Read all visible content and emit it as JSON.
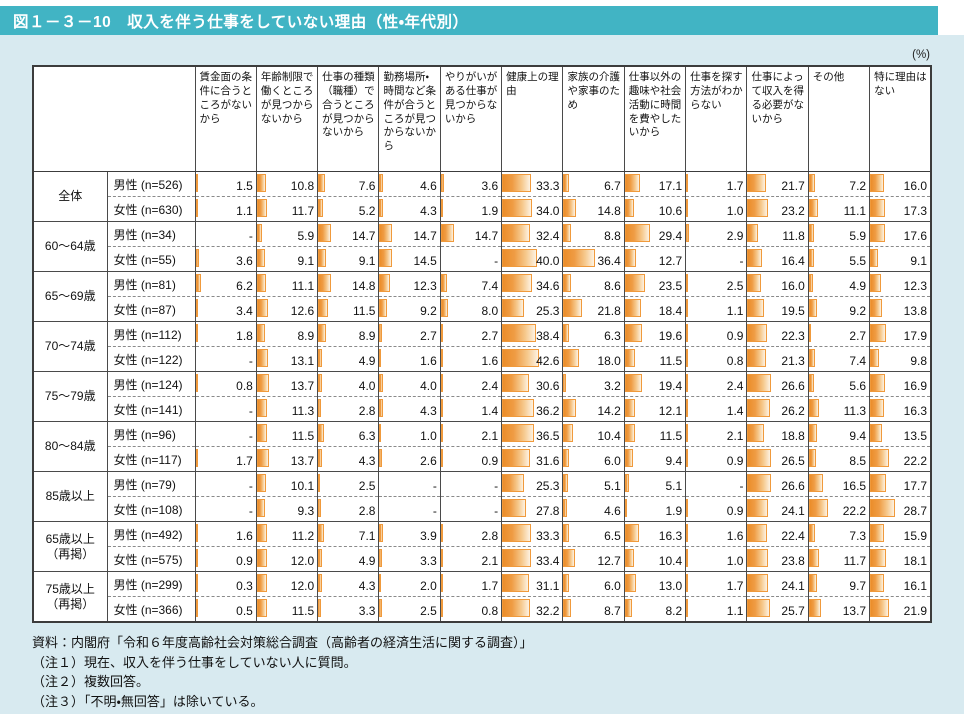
{
  "page": {
    "title": "図１－３－10　収入を伴う仕事をしていない理由（性・年代別）",
    "unit_label": "(%)"
  },
  "colors": {
    "title_bar": "#41b4c4",
    "panel_background": "#d8eaf0",
    "bar_border": "#f09a3c",
    "bar_fill_dark": "#eb8d2a",
    "bar_fill_light": "#fdf2e2"
  },
  "chart_data": {
    "type": "table",
    "title": "収入を伴う仕事をしていない理由（性・年代別）",
    "unit": "%",
    "columns": [
      "賃金面の条件に合うところがないから",
      "年齢制限で働くところが見つからないから",
      "仕事の種類（職種）で合うところが見つからないから",
      "勤務場所・時間など条件が合うところが見つからないから",
      "やりがいがある仕事が見つからないから",
      "健康上の理由",
      "家族の介護や家事のため",
      "仕事以外の趣味や社会活動に時間を費やしたいから",
      "仕事を探す方法がわからない",
      "仕事によって収入を得る必要がないから",
      "その他",
      "特に理由はない"
    ],
    "groups": [
      {
        "label": "全体",
        "rows": [
          {
            "label": "男性 (n=526)",
            "values": [
              "1.5",
              "10.8",
              "7.6",
              "4.6",
              "3.6",
              "33.3",
              "6.7",
              "17.1",
              "1.7",
              "21.7",
              "7.2",
              "16.0"
            ]
          },
          {
            "label": "女性 (n=630)",
            "values": [
              "1.1",
              "11.7",
              "5.2",
              "4.3",
              "1.9",
              "34.0",
              "14.8",
              "10.6",
              "1.0",
              "23.2",
              "11.1",
              "17.3"
            ]
          }
        ]
      },
      {
        "label": "60～64歳",
        "rows": [
          {
            "label": "男性 (n=34)",
            "values": [
              "-",
              "5.9",
              "14.7",
              "14.7",
              "14.7",
              "32.4",
              "8.8",
              "29.4",
              "2.9",
              "11.8",
              "5.9",
              "17.6"
            ]
          },
          {
            "label": "女性 (n=55)",
            "values": [
              "3.6",
              "9.1",
              "9.1",
              "14.5",
              "-",
              "40.0",
              "36.4",
              "12.7",
              "-",
              "16.4",
              "5.5",
              "9.1"
            ]
          }
        ]
      },
      {
        "label": "65～69歳",
        "rows": [
          {
            "label": "男性 (n=81)",
            "values": [
              "6.2",
              "11.1",
              "14.8",
              "12.3",
              "7.4",
              "34.6",
              "8.6",
              "23.5",
              "2.5",
              "16.0",
              "4.9",
              "12.3"
            ]
          },
          {
            "label": "女性 (n=87)",
            "values": [
              "3.4",
              "12.6",
              "11.5",
              "9.2",
              "8.0",
              "25.3",
              "21.8",
              "18.4",
              "1.1",
              "19.5",
              "9.2",
              "13.8"
            ]
          }
        ]
      },
      {
        "label": "70～74歳",
        "rows": [
          {
            "label": "男性 (n=112)",
            "values": [
              "1.8",
              "8.9",
              "8.9",
              "2.7",
              "2.7",
              "38.4",
              "6.3",
              "19.6",
              "0.9",
              "22.3",
              "2.7",
              "17.9"
            ]
          },
          {
            "label": "女性 (n=122)",
            "values": [
              "-",
              "13.1",
              "4.9",
              "1.6",
              "1.6",
              "42.6",
              "18.0",
              "11.5",
              "0.8",
              "21.3",
              "7.4",
              "9.8"
            ]
          }
        ]
      },
      {
        "label": "75～79歳",
        "rows": [
          {
            "label": "男性 (n=124)",
            "values": [
              "0.8",
              "13.7",
              "4.0",
              "4.0",
              "2.4",
              "30.6",
              "3.2",
              "19.4",
              "2.4",
              "26.6",
              "5.6",
              "16.9"
            ]
          },
          {
            "label": "女性 (n=141)",
            "values": [
              "-",
              "11.3",
              "2.8",
              "4.3",
              "1.4",
              "36.2",
              "14.2",
              "12.1",
              "1.4",
              "26.2",
              "11.3",
              "16.3"
            ]
          }
        ]
      },
      {
        "label": "80～84歳",
        "rows": [
          {
            "label": "男性 (n=96)",
            "values": [
              "-",
              "11.5",
              "6.3",
              "1.0",
              "2.1",
              "36.5",
              "10.4",
              "11.5",
              "2.1",
              "18.8",
              "9.4",
              "13.5"
            ]
          },
          {
            "label": "女性 (n=117)",
            "values": [
              "1.7",
              "13.7",
              "4.3",
              "2.6",
              "0.9",
              "31.6",
              "6.0",
              "9.4",
              "0.9",
              "26.5",
              "8.5",
              "22.2"
            ]
          }
        ]
      },
      {
        "label": "85歳以上",
        "rows": [
          {
            "label": "男性 (n=79)",
            "values": [
              "-",
              "10.1",
              "2.5",
              "-",
              "-",
              "25.3",
              "5.1",
              "5.1",
              "-",
              "26.6",
              "16.5",
              "17.7"
            ]
          },
          {
            "label": "女性 (n=108)",
            "values": [
              "-",
              "9.3",
              "2.8",
              "-",
              "-",
              "27.8",
              "4.6",
              "1.9",
              "0.9",
              "24.1",
              "22.2",
              "28.7"
            ]
          }
        ]
      },
      {
        "label": "65歳以上\n（再掲）",
        "rows": [
          {
            "label": "男性 (n=492)",
            "values": [
              "1.6",
              "11.2",
              "7.1",
              "3.9",
              "2.8",
              "33.3",
              "6.5",
              "16.3",
              "1.6",
              "22.4",
              "7.3",
              "15.9"
            ]
          },
          {
            "label": "女性 (n=575)",
            "values": [
              "0.9",
              "12.0",
              "4.9",
              "3.3",
              "2.1",
              "33.4",
              "12.7",
              "10.4",
              "1.0",
              "23.8",
              "11.7",
              "18.1"
            ]
          }
        ]
      },
      {
        "label": "75歳以上\n（再掲）",
        "rows": [
          {
            "label": "男性 (n=299)",
            "values": [
              "0.3",
              "12.0",
              "4.3",
              "2.0",
              "1.7",
              "31.1",
              "6.0",
              "13.0",
              "1.7",
              "24.1",
              "9.7",
              "16.1"
            ]
          },
          {
            "label": "女性 (n=366)",
            "values": [
              "0.5",
              "11.5",
              "3.3",
              "2.5",
              "0.8",
              "32.2",
              "8.7",
              "8.2",
              "1.1",
              "25.7",
              "13.7",
              "21.9"
            ]
          }
        ]
      }
    ]
  },
  "notes": [
    "資料：内閣府「令和６年度高齢社会対策総合調査（高齢者の経済生活に関する調査）」",
    "（注１）現在、収入を伴う仕事をしていない人に質問。",
    "（注２）複数回答。",
    "（注３）「不明・無回答」は除いている。"
  ]
}
